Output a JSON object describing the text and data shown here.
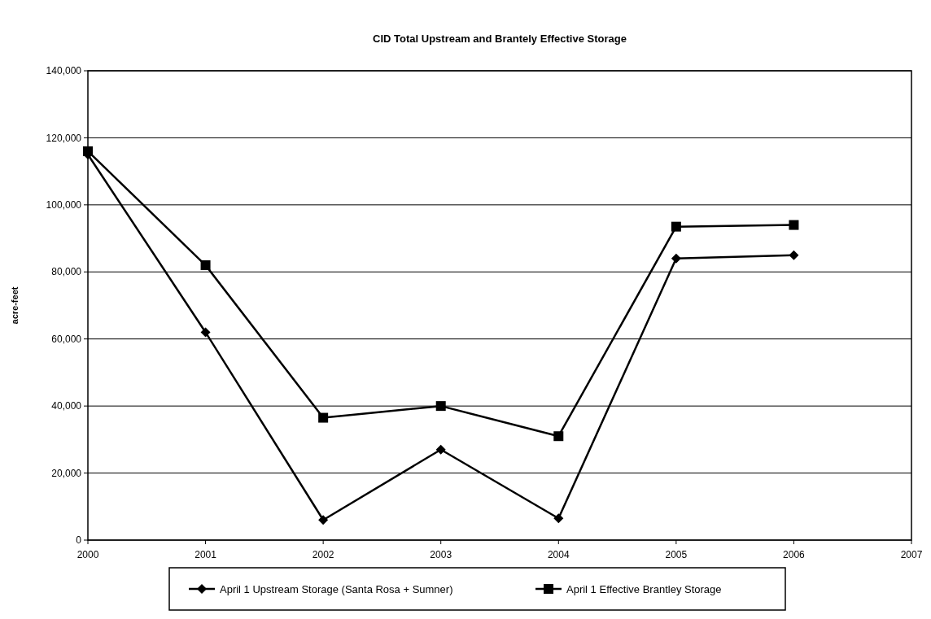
{
  "chart_data": {
    "type": "line",
    "title": "CID Total Upstream and Brantely Effective Storage",
    "ylabel": "acre-feet",
    "x": [
      2000,
      2001,
      2002,
      2003,
      2004,
      2005,
      2006
    ],
    "xlim": [
      2000,
      2007
    ],
    "xticks": [
      2000,
      2001,
      2002,
      2003,
      2004,
      2005,
      2006,
      2007
    ],
    "ylim": [
      0,
      140000
    ],
    "yticks": [
      {
        "value": 0,
        "label": "0"
      },
      {
        "value": 20000,
        "label": "20,000"
      },
      {
        "value": 40000,
        "label": "40,000"
      },
      {
        "value": 60000,
        "label": "60,000"
      },
      {
        "value": 80000,
        "label": "80,000"
      },
      {
        "value": 100000,
        "label": "100,000"
      },
      {
        "value": 120000,
        "label": "120,000"
      },
      {
        "value": 140000,
        "label": "140,000"
      }
    ],
    "grid": "y",
    "legend": "bottom",
    "line_style": "solid",
    "series": [
      {
        "name": "April 1 Upstream Storage (Santa Rosa + Sumner)",
        "color": "#000000",
        "marker": "diamond",
        "values": [
          115000,
          62000,
          6000,
          27000,
          6500,
          84000,
          85000
        ]
      },
      {
        "name": "April 1 Effective Brantley Storage",
        "color": "#000000",
        "marker": "square",
        "values": [
          116000,
          82000,
          36500,
          40000,
          31000,
          93500,
          94000
        ]
      }
    ]
  }
}
